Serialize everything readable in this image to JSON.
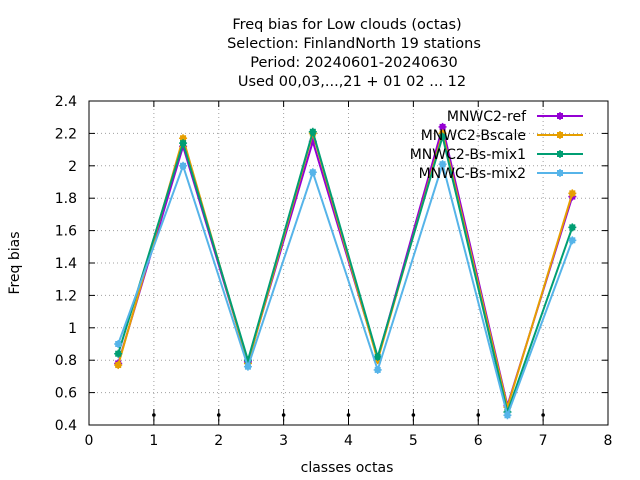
{
  "chart_data": {
    "type": "line",
    "title": [
      "Freq bias  for Low clouds (octas)",
      "Selection: FinlandNorth     19 stations",
      "Period: 20240601-20240630",
      "Used 00,03,...,21 + 01 02 ... 12"
    ],
    "xlabel": "classes octas",
    "ylabel": "Freq bias",
    "xlim": [
      0,
      8
    ],
    "ylim": [
      0.4,
      2.4
    ],
    "xticks": [
      "0",
      "1",
      "2",
      "3",
      "4",
      "5",
      "6",
      "7",
      "8"
    ],
    "yticks": [
      "0.4",
      "0.6",
      "0.8",
      "1",
      "1.2",
      "1.4",
      "1.6",
      "1.8",
      "2",
      "2.2",
      "2.4"
    ],
    "grid": true,
    "legend_position": "top-right",
    "x": [
      0.45,
      1.45,
      2.45,
      3.45,
      4.45,
      5.45,
      6.45,
      7.45
    ],
    "bottom_marker_x": [
      1,
      2,
      3,
      4,
      5,
      6,
      7
    ],
    "series": [
      {
        "name": "MNWC2-ref",
        "color": "#9400d3",
        "values": [
          0.78,
          2.12,
          0.79,
          2.15,
          0.81,
          2.24,
          0.52,
          1.81
        ]
      },
      {
        "name": "MNWC2-Bscale",
        "color": "#e69f00",
        "values": [
          0.77,
          2.17,
          0.78,
          2.2,
          0.8,
          2.2,
          0.51,
          1.83
        ]
      },
      {
        "name": "MNWC2-Bs-mix1",
        "color": "#009e73",
        "values": [
          0.84,
          2.14,
          0.8,
          2.21,
          0.82,
          2.18,
          0.48,
          1.62
        ]
      },
      {
        "name": "MNWC-Bs-mix2",
        "color": "#56b4e9",
        "values": [
          0.9,
          2.0,
          0.76,
          1.96,
          0.74,
          2.01,
          0.46,
          1.54
        ]
      }
    ]
  }
}
